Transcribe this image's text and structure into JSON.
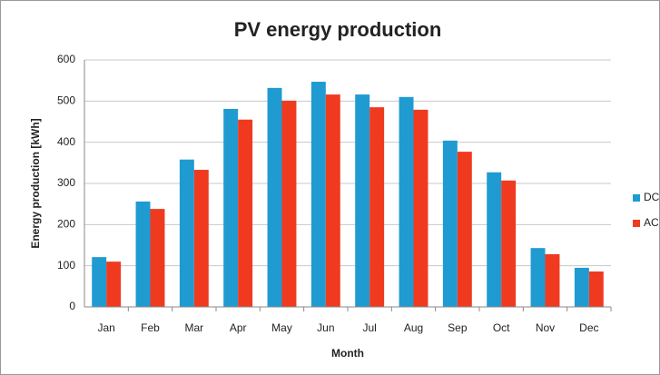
{
  "chart_data": {
    "type": "bar",
    "title": "PV energy production",
    "x_label": "Month",
    "y_label": "Energy production [kWh]",
    "categories": [
      "Jan",
      "Feb",
      "Mar",
      "Apr",
      "May",
      "Jun",
      "Jul",
      "Aug",
      "Sep",
      "Oct",
      "Nov",
      "Dec"
    ],
    "series": [
      {
        "name": "DC",
        "color": "#1f9bd1",
        "values": [
          121,
          256,
          358,
          481,
          532,
          547,
          516,
          510,
          404,
          327,
          143,
          95
        ]
      },
      {
        "name": "AC",
        "color": "#f03a20",
        "values": [
          110,
          238,
          333,
          455,
          501,
          516,
          485,
          479,
          377,
          307,
          128,
          86
        ]
      }
    ],
    "ylim": [
      0,
      600
    ],
    "yticks": [
      0,
      100,
      200,
      300,
      400,
      500,
      600
    ],
    "grid": true,
    "legend": "right"
  }
}
